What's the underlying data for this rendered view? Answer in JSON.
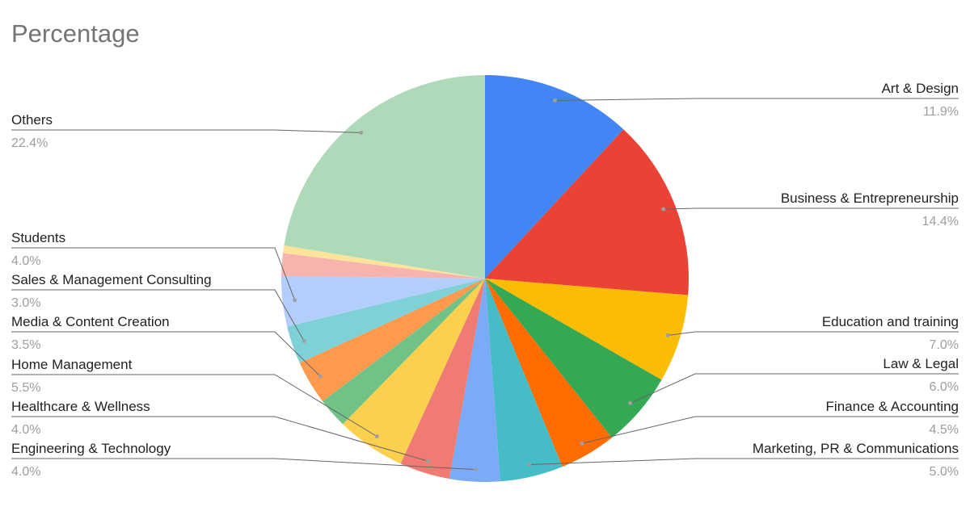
{
  "chart_data": {
    "type": "pie",
    "title": "Percentage",
    "categories": [
      "Art & Design",
      "Business & Entrepreneurship",
      "Education and training",
      "Law & Legal",
      "Finance & Accounting",
      "Marketing, PR & Communications",
      "Engineering & Technology",
      "Healthcare & Wellness",
      "Home Management",
      null,
      "Media & Content Creation",
      "Sales & Management Consulting",
      "Students",
      null,
      null,
      "Others"
    ],
    "values": [
      11.9,
      14.4,
      7.0,
      6.0,
      4.5,
      5.0,
      4.0,
      4.0,
      5.5,
      2.4,
      3.5,
      3.0,
      4.0,
      1.8,
      0.6,
      22.4
    ],
    "value_labels": [
      "11.9%",
      "14.4%",
      "7.0%",
      "6.0%",
      "4.5%",
      "5.0%",
      "4.0%",
      "4.0%",
      "5.5%",
      null,
      "3.5%",
      "3.0%",
      "4.0%",
      null,
      null,
      "22.4%"
    ],
    "colors": [
      "#4285f4",
      "#ea4335",
      "#fbbc04",
      "#34a853",
      "#ff6d01",
      "#46bdc6",
      "#7baaf7",
      "#f07b72",
      "#fcd04f",
      "#71c287",
      "#ff994d",
      "#7ed1d7",
      "#b3cefb",
      "#f7b4ae",
      "#fde49b",
      "#aedab9"
    ]
  }
}
